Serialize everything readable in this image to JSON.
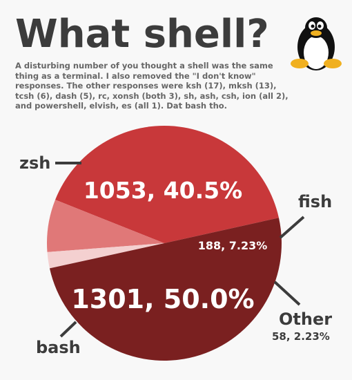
{
  "title": "What shell?",
  "subtitle": "A disturbing number of you thought a shell was the same thing as a terminal. I also removed the \"I don't know\" responses. The other responses were ksh (17), mksh (13), tcsh (6), dash (5), rc, xonsh (both 3), sh, ash, csh, ion (all 2), and powershell, elvish, es (all 1). Dat bash tho.",
  "logo": "tux-penguin-icon",
  "colors": {
    "zsh": "#c8383a",
    "fish": "#e07878",
    "other": "#f4d0d0",
    "bash": "#7a2020",
    "background": "#f8f8f8",
    "text": "#3c3c3c"
  },
  "chart_data": {
    "type": "pie",
    "title": "What shell?",
    "slices": [
      {
        "name": "zsh",
        "value": 1053,
        "percent": "40.5%",
        "label": "1053, 40.5%"
      },
      {
        "name": "fish",
        "value": 188,
        "percent": "7.23%",
        "label": "188, 7.23%"
      },
      {
        "name": "Other",
        "value": 58,
        "percent": "2.23%",
        "label": "58, 2.23%"
      },
      {
        "name": "bash",
        "value": 1301,
        "percent": "50.0%",
        "label": "1301, 50.0%"
      }
    ]
  }
}
